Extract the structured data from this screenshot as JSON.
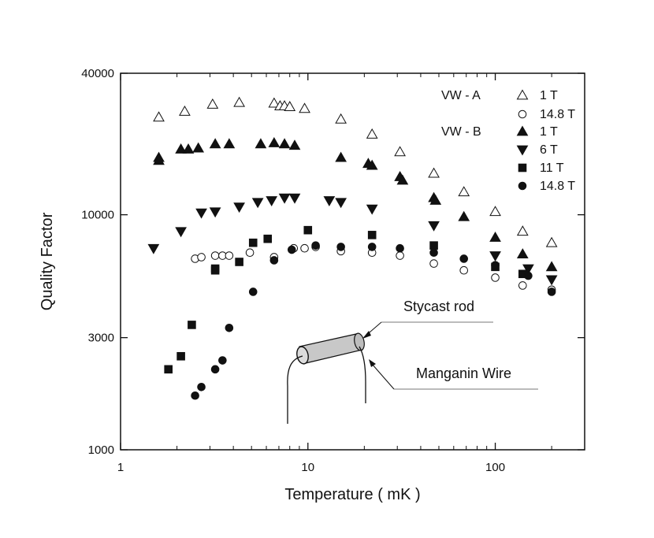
{
  "chart_data": {
    "type": "scatter",
    "xlabel": "Temperature ( mK )",
    "ylabel": "Quality Factor",
    "x_scale": "log",
    "y_scale": "log",
    "xlim": [
      1,
      300
    ],
    "ylim": [
      1000,
      40000
    ],
    "x_ticks": [
      {
        "value": 1,
        "label": "1"
      },
      {
        "value": 10,
        "label": "10"
      },
      {
        "value": 100,
        "label": "100"
      }
    ],
    "y_ticks": [
      {
        "value": 1000,
        "label": "1000"
      },
      {
        "value": 3000,
        "label": "3000"
      },
      {
        "value": 10000,
        "label": "10000"
      },
      {
        "value": 40000,
        "label": "40000"
      }
    ],
    "grid": false,
    "legend_position": "top-right",
    "legend_groups": [
      "VW - A",
      "VW - B"
    ],
    "series": [
      {
        "group": "VW - A",
        "name": "1 T",
        "marker": "triangle-up-open",
        "points": [
          [
            1.6,
            26000
          ],
          [
            2.2,
            27500
          ],
          [
            3.1,
            29500
          ],
          [
            4.3,
            30000
          ],
          [
            6.6,
            29800
          ],
          [
            7.1,
            29000
          ],
          [
            7.5,
            29000
          ],
          [
            8.0,
            28800
          ],
          [
            9.6,
            28300
          ],
          [
            15,
            25500
          ],
          [
            22,
            22000
          ],
          [
            31,
            18500
          ],
          [
            47,
            15000
          ],
          [
            68,
            12500
          ],
          [
            100,
            10300
          ],
          [
            140,
            8500
          ],
          [
            200,
            7600
          ]
        ]
      },
      {
        "group": "VW - A",
        "name": "14.8 T",
        "marker": "circle-open",
        "points": [
          [
            2.5,
            6500
          ],
          [
            2.7,
            6600
          ],
          [
            3.2,
            6700
          ],
          [
            3.5,
            6700
          ],
          [
            3.8,
            6700
          ],
          [
            4.9,
            6900
          ],
          [
            6.6,
            6600
          ],
          [
            8.4,
            7200
          ],
          [
            9.6,
            7200
          ],
          [
            11,
            7300
          ],
          [
            15,
            7000
          ],
          [
            22,
            6900
          ],
          [
            31,
            6700
          ],
          [
            47,
            6200
          ],
          [
            68,
            5800
          ],
          [
            100,
            5400
          ],
          [
            140,
            5000
          ],
          [
            200,
            4800
          ]
        ]
      },
      {
        "group": "VW - B",
        "name": "1 T",
        "marker": "triangle-up-filled",
        "points": [
          [
            1.6,
            17500
          ],
          [
            1.6,
            17000
          ],
          [
            2.1,
            19000
          ],
          [
            2.3,
            19000
          ],
          [
            2.6,
            19200
          ],
          [
            3.2,
            20000
          ],
          [
            3.8,
            20000
          ],
          [
            5.6,
            20000
          ],
          [
            6.6,
            20200
          ],
          [
            7.5,
            20000
          ],
          [
            8.5,
            19700
          ],
          [
            15,
            17500
          ],
          [
            21,
            16500
          ],
          [
            22,
            16200
          ],
          [
            31,
            14500
          ],
          [
            32,
            14000
          ],
          [
            47,
            11800
          ],
          [
            48,
            11500
          ],
          [
            68,
            9800
          ],
          [
            100,
            8000
          ],
          [
            140,
            6800
          ],
          [
            200,
            6000
          ]
        ]
      },
      {
        "group": "VW - B",
        "name": "6 T",
        "marker": "triangle-down-filled",
        "points": [
          [
            1.5,
            7200
          ],
          [
            2.1,
            8500
          ],
          [
            2.7,
            10200
          ],
          [
            3.2,
            10300
          ],
          [
            4.3,
            10800
          ],
          [
            5.4,
            11300
          ],
          [
            6.4,
            11500
          ],
          [
            7.5,
            11800
          ],
          [
            8.5,
            11800
          ],
          [
            13,
            11500
          ],
          [
            15,
            11300
          ],
          [
            22,
            10600
          ],
          [
            47,
            9000
          ],
          [
            100,
            6700
          ],
          [
            150,
            5900
          ],
          [
            200,
            5300
          ]
        ]
      },
      {
        "group": "VW - B",
        "name": "11 T",
        "marker": "square-filled",
        "points": [
          [
            1.8,
            2200
          ],
          [
            2.1,
            2500
          ],
          [
            2.4,
            3400
          ],
          [
            3.2,
            5900
          ],
          [
            3.2,
            5800
          ],
          [
            4.3,
            6300
          ],
          [
            5.1,
            7600
          ],
          [
            6.1,
            7900
          ],
          [
            10,
            8600
          ],
          [
            22,
            8200
          ],
          [
            47,
            7400
          ],
          [
            100,
            6000
          ],
          [
            140,
            5600
          ]
        ]
      },
      {
        "group": "VW - B",
        "name": "14.8 T",
        "marker": "circle-filled",
        "points": [
          [
            2.5,
            1700
          ],
          [
            2.7,
            1850
          ],
          [
            3.2,
            2200
          ],
          [
            3.5,
            2400
          ],
          [
            3.8,
            3300
          ],
          [
            5.1,
            4700
          ],
          [
            6.6,
            6400
          ],
          [
            8.2,
            7100
          ],
          [
            11,
            7400
          ],
          [
            15,
            7300
          ],
          [
            22,
            7300
          ],
          [
            31,
            7200
          ],
          [
            47,
            6900
          ],
          [
            68,
            6500
          ],
          [
            100,
            6100
          ],
          [
            150,
            5500
          ],
          [
            200,
            4700
          ]
        ]
      }
    ]
  },
  "inset": {
    "rod_label": "Stycast rod",
    "wire_label": "Manganin Wire"
  }
}
